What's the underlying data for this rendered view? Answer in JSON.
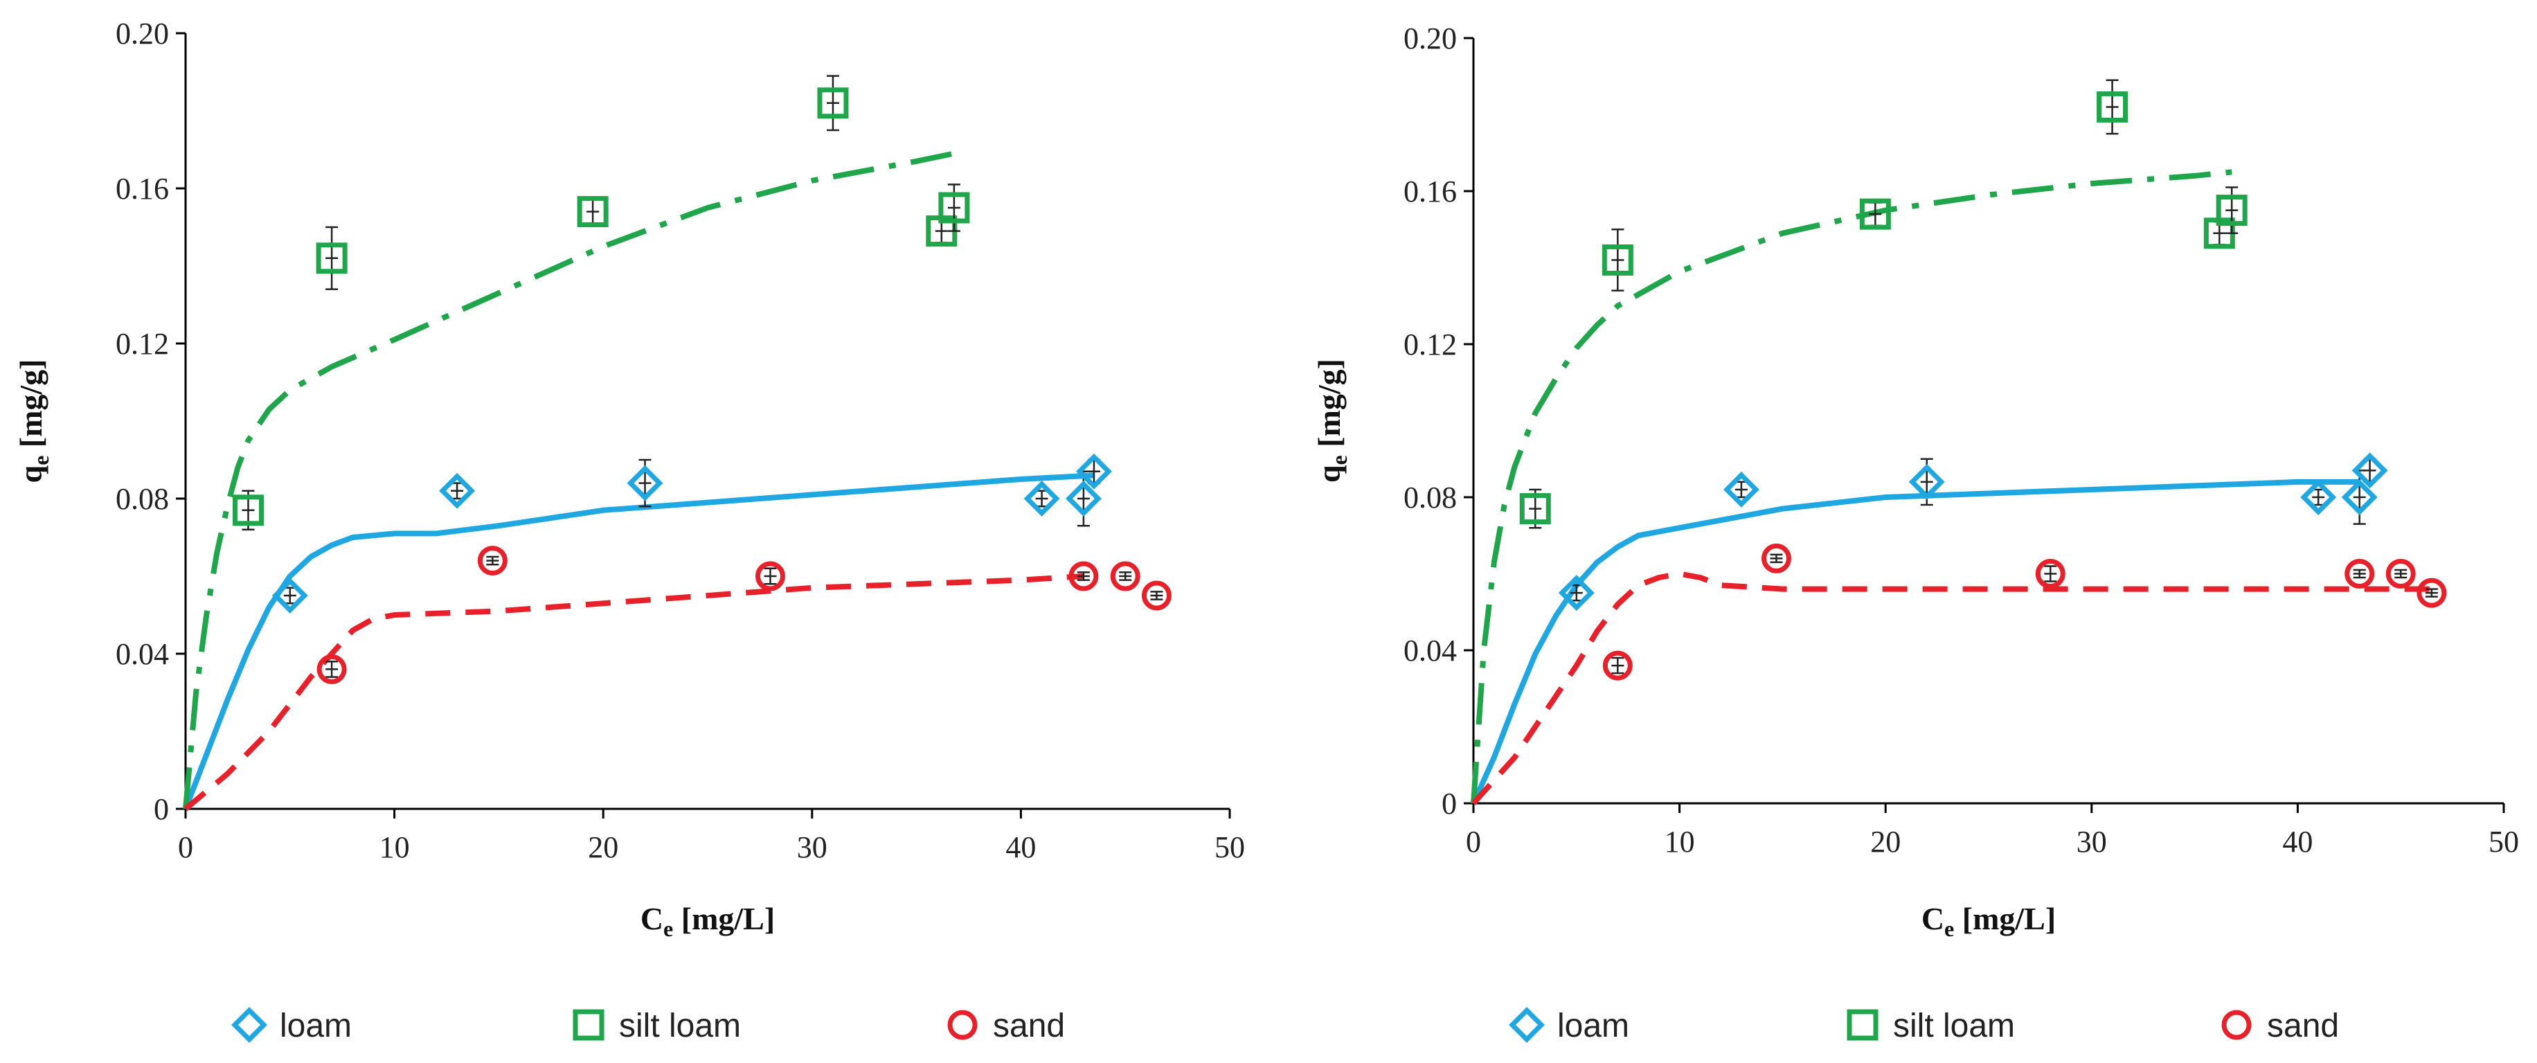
{
  "colors": {
    "loam": "#1ea7e0",
    "silt_loam": "#1fa64a",
    "sand": "#e8202a",
    "axis": "#000000",
    "errbar": "#222222"
  },
  "chart_data": [
    {
      "type": "scatter",
      "panel": "left",
      "xlabel_main": "C",
      "xlabel_sub": "e",
      "xlabel_unit": " [mg/L]",
      "ylabel_main": "q",
      "ylabel_sub": "e",
      "ylabel_unit": " [mg/g]",
      "xlim": [
        0,
        50
      ],
      "ylim": [
        0,
        0.2
      ],
      "xticks": [
        0,
        10,
        20,
        30,
        40,
        50
      ],
      "xtick_labels": [
        "0",
        "10",
        "20",
        "30",
        "40",
        "50"
      ],
      "yticks": [
        0,
        0.04,
        0.08,
        0.12,
        0.16,
        0.2
      ],
      "ytick_labels": [
        "0",
        "0.04",
        "0.08",
        "0.12",
        "0.16",
        "0.20"
      ],
      "series": [
        {
          "name": "loam",
          "marker": "diamond",
          "x": [
            5,
            13,
            22,
            41,
            43,
            43.5
          ],
          "y": [
            0.055,
            0.082,
            0.084,
            0.08,
            0.08,
            0.087
          ],
          "err": [
            0.002,
            0.002,
            0.006,
            0.002,
            0.007,
            0.003
          ]
        },
        {
          "name": "silt loam",
          "marker": "square",
          "x": [
            3,
            7,
            19.5,
            31,
            36.2,
            36.8
          ],
          "y": [
            0.077,
            0.142,
            0.154,
            0.182,
            0.149,
            0.155
          ],
          "err": [
            0.005,
            0.008,
            0.003,
            0.007,
            0.003,
            0.006
          ]
        },
        {
          "name": "sand",
          "marker": "circle",
          "x": [
            7,
            14.7,
            28,
            43,
            45,
            46.5
          ],
          "y": [
            0.036,
            0.064,
            0.06,
            0.06,
            0.06,
            0.055
          ],
          "err": [
            0.002,
            0.001,
            0.002,
            0.001,
            0.001,
            0.001
          ]
        }
      ],
      "fits": [
        {
          "name": "loam fit",
          "style": "solid",
          "x": [
            0,
            1,
            2,
            3,
            4,
            5,
            6,
            7,
            8,
            10,
            12,
            15,
            20,
            25,
            30,
            35,
            40,
            43.5
          ],
          "y": [
            0,
            0.014,
            0.028,
            0.041,
            0.052,
            0.06,
            0.065,
            0.068,
            0.07,
            0.071,
            0.071,
            0.073,
            0.077,
            0.079,
            0.081,
            0.083,
            0.085,
            0.086
          ]
        },
        {
          "name": "silt loam fit",
          "style": "dashdot",
          "x": [
            0,
            0.5,
            1,
            1.5,
            2,
            2.5,
            3,
            4,
            5,
            7,
            10,
            15,
            20,
            25,
            30,
            35,
            36.8
          ],
          "y": [
            0,
            0.03,
            0.05,
            0.066,
            0.078,
            0.088,
            0.095,
            0.103,
            0.108,
            0.114,
            0.121,
            0.133,
            0.145,
            0.155,
            0.162,
            0.167,
            0.169
          ]
        },
        {
          "name": "sand fit",
          "style": "dashed",
          "x": [
            0,
            2,
            4,
            5,
            6,
            7,
            8,
            9,
            10,
            15,
            20,
            30,
            40,
            43
          ],
          "y": [
            0,
            0.009,
            0.02,
            0.027,
            0.034,
            0.04,
            0.046,
            0.049,
            0.05,
            0.051,
            0.053,
            0.057,
            0.059,
            0.06
          ]
        }
      ],
      "legend": [
        "loam",
        "silt loam",
        "sand"
      ]
    },
    {
      "type": "scatter",
      "panel": "right",
      "xlabel_main": "C",
      "xlabel_sub": "e",
      "xlabel_unit": " [mg/L]",
      "ylabel_main": "q",
      "ylabel_sub": "e",
      "ylabel_unit": " [mg/g]",
      "xlim": [
        0,
        50
      ],
      "ylim": [
        0,
        0.2
      ],
      "xticks": [
        0,
        10,
        20,
        30,
        40,
        50
      ],
      "xtick_labels": [
        "0",
        "10",
        "20",
        "30",
        "40",
        "50"
      ],
      "yticks": [
        0,
        0.04,
        0.08,
        0.12,
        0.16,
        0.2
      ],
      "ytick_labels": [
        "0",
        "0.04",
        "0.08",
        "0.12",
        "0.16",
        "0.20"
      ],
      "series": [
        {
          "name": "loam",
          "marker": "diamond",
          "x": [
            5,
            13,
            22,
            41,
            43,
            43.5
          ],
          "y": [
            0.055,
            0.082,
            0.084,
            0.08,
            0.08,
            0.087
          ],
          "err": [
            0.002,
            0.002,
            0.006,
            0.002,
            0.007,
            0.003
          ]
        },
        {
          "name": "silt loam",
          "marker": "square",
          "x": [
            3,
            7,
            19.5,
            31,
            36.2,
            36.8
          ],
          "y": [
            0.077,
            0.142,
            0.154,
            0.182,
            0.149,
            0.155
          ],
          "err": [
            0.005,
            0.008,
            0.003,
            0.007,
            0.003,
            0.006
          ]
        },
        {
          "name": "sand",
          "marker": "circle",
          "x": [
            7,
            14.7,
            28,
            43,
            45,
            46.5
          ],
          "y": [
            0.036,
            0.064,
            0.06,
            0.06,
            0.06,
            0.055
          ],
          "err": [
            0.002,
            0.001,
            0.002,
            0.001,
            0.001,
            0.001
          ]
        }
      ],
      "fits": [
        {
          "name": "loam fit",
          "style": "solid",
          "x": [
            0,
            1,
            2,
            3,
            4,
            5,
            6,
            7,
            8,
            10,
            12,
            15,
            20,
            25,
            30,
            35,
            40,
            43
          ],
          "y": [
            0,
            0.012,
            0.026,
            0.039,
            0.049,
            0.057,
            0.063,
            0.067,
            0.07,
            0.072,
            0.074,
            0.077,
            0.08,
            0.081,
            0.082,
            0.083,
            0.084,
            0.084
          ]
        },
        {
          "name": "silt loam fit",
          "style": "dashdot",
          "x": [
            0,
            0.5,
            1,
            1.5,
            2,
            3,
            4,
            5,
            6,
            7,
            10,
            15,
            20,
            25,
            30,
            35,
            36.8
          ],
          "y": [
            0,
            0.04,
            0.063,
            0.078,
            0.088,
            0.102,
            0.111,
            0.119,
            0.125,
            0.13,
            0.139,
            0.149,
            0.155,
            0.159,
            0.162,
            0.164,
            0.165
          ]
        },
        {
          "name": "sand fit",
          "style": "dashed",
          "x": [
            0,
            2,
            4,
            5,
            6,
            7,
            8,
            9,
            10,
            11,
            12,
            15,
            20,
            30,
            40,
            46.5
          ],
          "y": [
            0,
            0.012,
            0.028,
            0.036,
            0.045,
            0.052,
            0.057,
            0.059,
            0.06,
            0.059,
            0.057,
            0.056,
            0.056,
            0.056,
            0.056,
            0.056
          ]
        }
      ],
      "legend": [
        "loam",
        "silt loam",
        "sand"
      ]
    }
  ]
}
